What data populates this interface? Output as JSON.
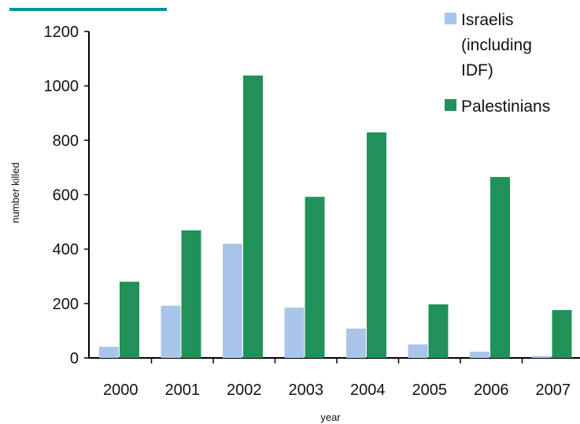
{
  "chart_data": {
    "type": "bar",
    "categories": [
      "2000",
      "2001",
      "2002",
      "2003",
      "2004",
      "2005",
      "2006",
      "2007"
    ],
    "series": [
      {
        "name": "Israelis (including IDF)",
        "name_lines": [
          "Israelis",
          "(including",
          "IDF)"
        ],
        "color": "#a9c6ea",
        "values": [
          41,
          192,
          420,
          185,
          108,
          50,
          23,
          7
        ]
      },
      {
        "name": "Palestinians",
        "name_lines": [
          "Palestinians"
        ],
        "color": "#219159",
        "values": [
          280,
          469,
          1038,
          592,
          829,
          197,
          665,
          176
        ]
      }
    ],
    "xlabel": "year",
    "ylabel": "number killed",
    "ylim": [
      0,
      1200
    ],
    "yticks": [
      "0",
      "200",
      "400",
      "600",
      "800",
      "1000",
      "1200"
    ],
    "grid": false,
    "legend_position": "top-right",
    "decoration_color": "#0b8fa7"
  }
}
